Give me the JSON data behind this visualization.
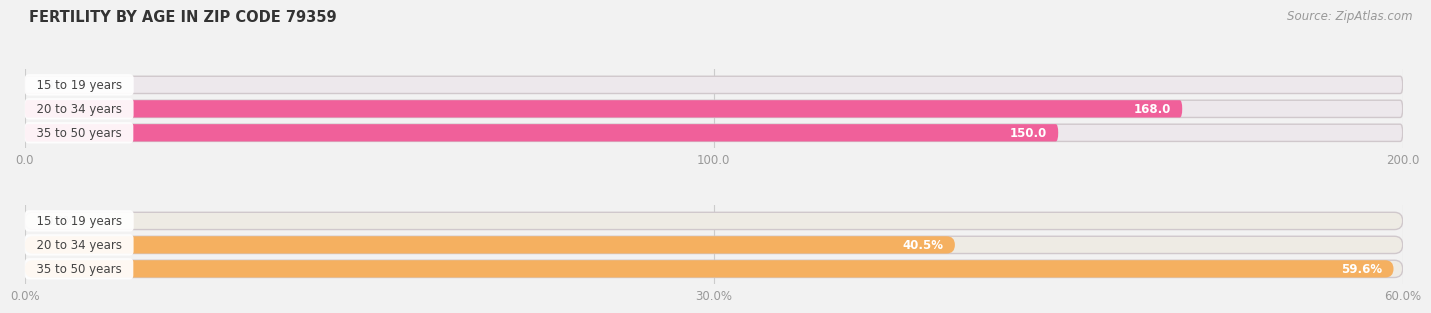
{
  "title": "FERTILITY BY AGE IN ZIP CODE 79359",
  "source_text": "Source: ZipAtlas.com",
  "top_chart": {
    "categories": [
      "15 to 19 years",
      "20 to 34 years",
      "35 to 50 years"
    ],
    "values": [
      0.0,
      168.0,
      150.0
    ],
    "max_value": 200.0,
    "bar_color": "#f0609a",
    "bar_bg_color": "#ede8ec",
    "tick_values": [
      0.0,
      100.0,
      200.0
    ],
    "tick_labels": [
      "0.0",
      "100.0",
      "200.0"
    ]
  },
  "bottom_chart": {
    "categories": [
      "15 to 19 years",
      "20 to 34 years",
      "35 to 50 years"
    ],
    "values": [
      0.0,
      40.5,
      59.6
    ],
    "max_value": 60.0,
    "bar_color": "#f5b060",
    "bar_bg_color": "#eeebe4",
    "tick_values": [
      0.0,
      30.0,
      60.0
    ],
    "tick_labels": [
      "0.0%",
      "30.0%",
      "60.0%"
    ]
  },
  "bg_color": "#f2f2f2",
  "grid_color": "#cccccc",
  "tick_color": "#999999",
  "label_box_color": "#ffffff",
  "label_text_color": "#444444",
  "value_color_inside": "#ffffff",
  "value_color_outside": "#888888"
}
